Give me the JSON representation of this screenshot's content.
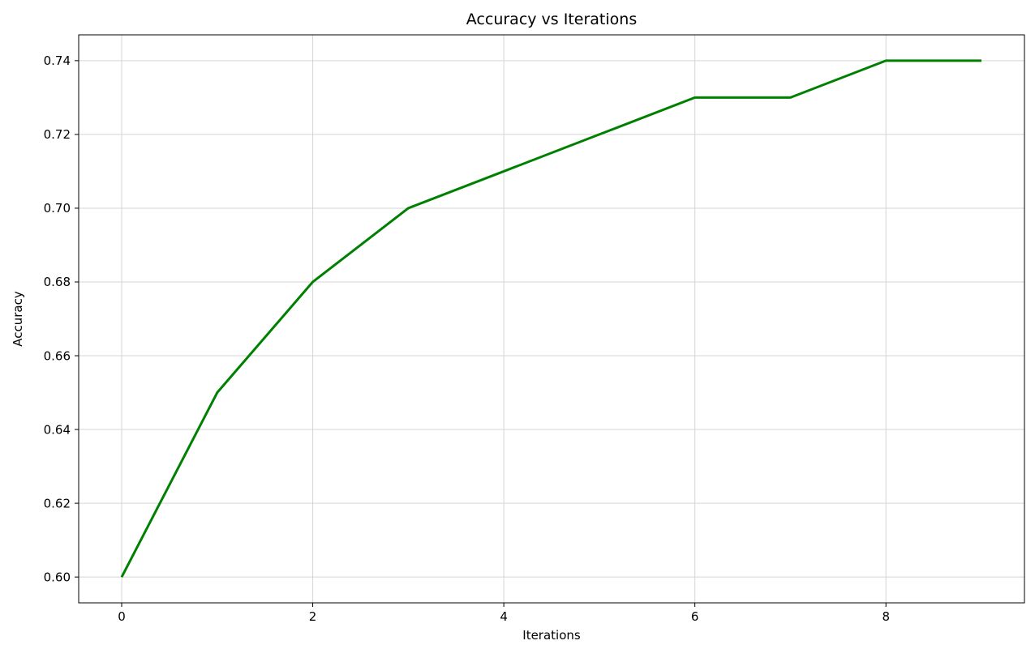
{
  "chart_data": {
    "type": "line",
    "title": "Accuracy vs Iterations",
    "xlabel": "Iterations",
    "ylabel": "Accuracy",
    "x": [
      0,
      1,
      2,
      3,
      4,
      5,
      6,
      7,
      8,
      9
    ],
    "series": [
      {
        "name": "accuracy",
        "color": "#008000",
        "values": [
          0.6,
          0.65,
          0.68,
          0.7,
          0.71,
          0.72,
          0.73,
          0.73,
          0.74,
          0.74
        ]
      }
    ],
    "xlim": [
      -0.45,
      9.45
    ],
    "ylim": [
      0.593,
      0.747
    ],
    "xticks": [
      0,
      2,
      4,
      6,
      8
    ],
    "xtick_labels": [
      "0",
      "2",
      "4",
      "6",
      "8"
    ],
    "yticks": [
      0.6,
      0.62,
      0.64,
      0.66,
      0.68,
      0.7,
      0.72,
      0.74
    ],
    "ytick_labels": [
      "0.60",
      "0.62",
      "0.64",
      "0.66",
      "0.68",
      "0.70",
      "0.72",
      "0.74"
    ],
    "grid": true,
    "grid_color": "#d5d5d5",
    "legend": "none",
    "background": "#ffffff",
    "line_width": 3,
    "spine_color": "#000000"
  }
}
